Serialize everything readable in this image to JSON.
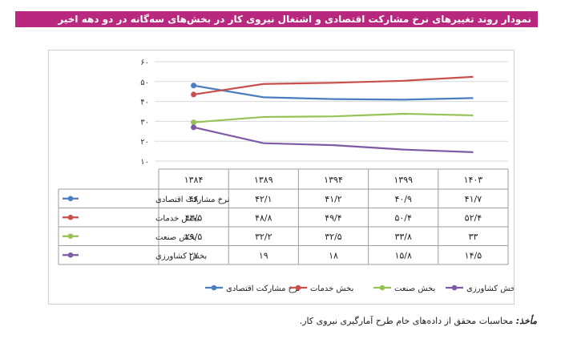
{
  "title": "نمودار روند تغییرهای نرخ مشارکت اقتصادی و اشتغال نیروی کار در بخش‌های سه‌گانه در دو دهه اخیر",
  "source": {
    "label": "مأخذ:",
    "text": "محاسبات محقق از داده‌های خام طرح آمارگیری نیروی کار."
  },
  "chart_data": {
    "type": "line",
    "categories": [
      "۱۳۸۴",
      "۱۳۸۹",
      "۱۳۹۴",
      "۱۳۹۹",
      "۱۴۰۳"
    ],
    "y_ticks": [
      "۱۰",
      "۲۰",
      "۳۰",
      "۴۰",
      "۵۰",
      "۶۰"
    ],
    "ylim": [
      10,
      60
    ],
    "grid": true,
    "legend": "bottom",
    "data_table": true,
    "series": [
      {
        "name": "نرخ مشارکت اقتصادی",
        "color": "#4a7ec0",
        "values": [
          48,
          42.1,
          41.2,
          40.9,
          41.7
        ],
        "labels": [
          "۴۸",
          "۴۲/۱",
          "۴۱/۲",
          "۴۰/۹",
          "۴۱/۷"
        ]
      },
      {
        "name": "بخش خدمات",
        "color": "#c9504a",
        "values": [
          43.5,
          48.8,
          49.4,
          50.4,
          52.4
        ],
        "labels": [
          "۴۳/۵",
          "۴۸/۸",
          "۴۹/۴",
          "۵۰/۴",
          "۵۲/۴"
        ]
      },
      {
        "name": "بخش صنعت",
        "color": "#96c255",
        "values": [
          29.5,
          32.2,
          32.5,
          33.8,
          33
        ],
        "labels": [
          "۲۹/۵",
          "۳۲/۲",
          "۳۲/۵",
          "۳۳/۸",
          "۳۳"
        ]
      },
      {
        "name": "بخش کشاورزی",
        "color": "#7e5aa6",
        "values": [
          27,
          19,
          18,
          15.8,
          14.5
        ],
        "labels": [
          "۲۷",
          "۱۹",
          "۱۸",
          "۱۵/۸",
          "۱۴/۵"
        ]
      }
    ]
  }
}
